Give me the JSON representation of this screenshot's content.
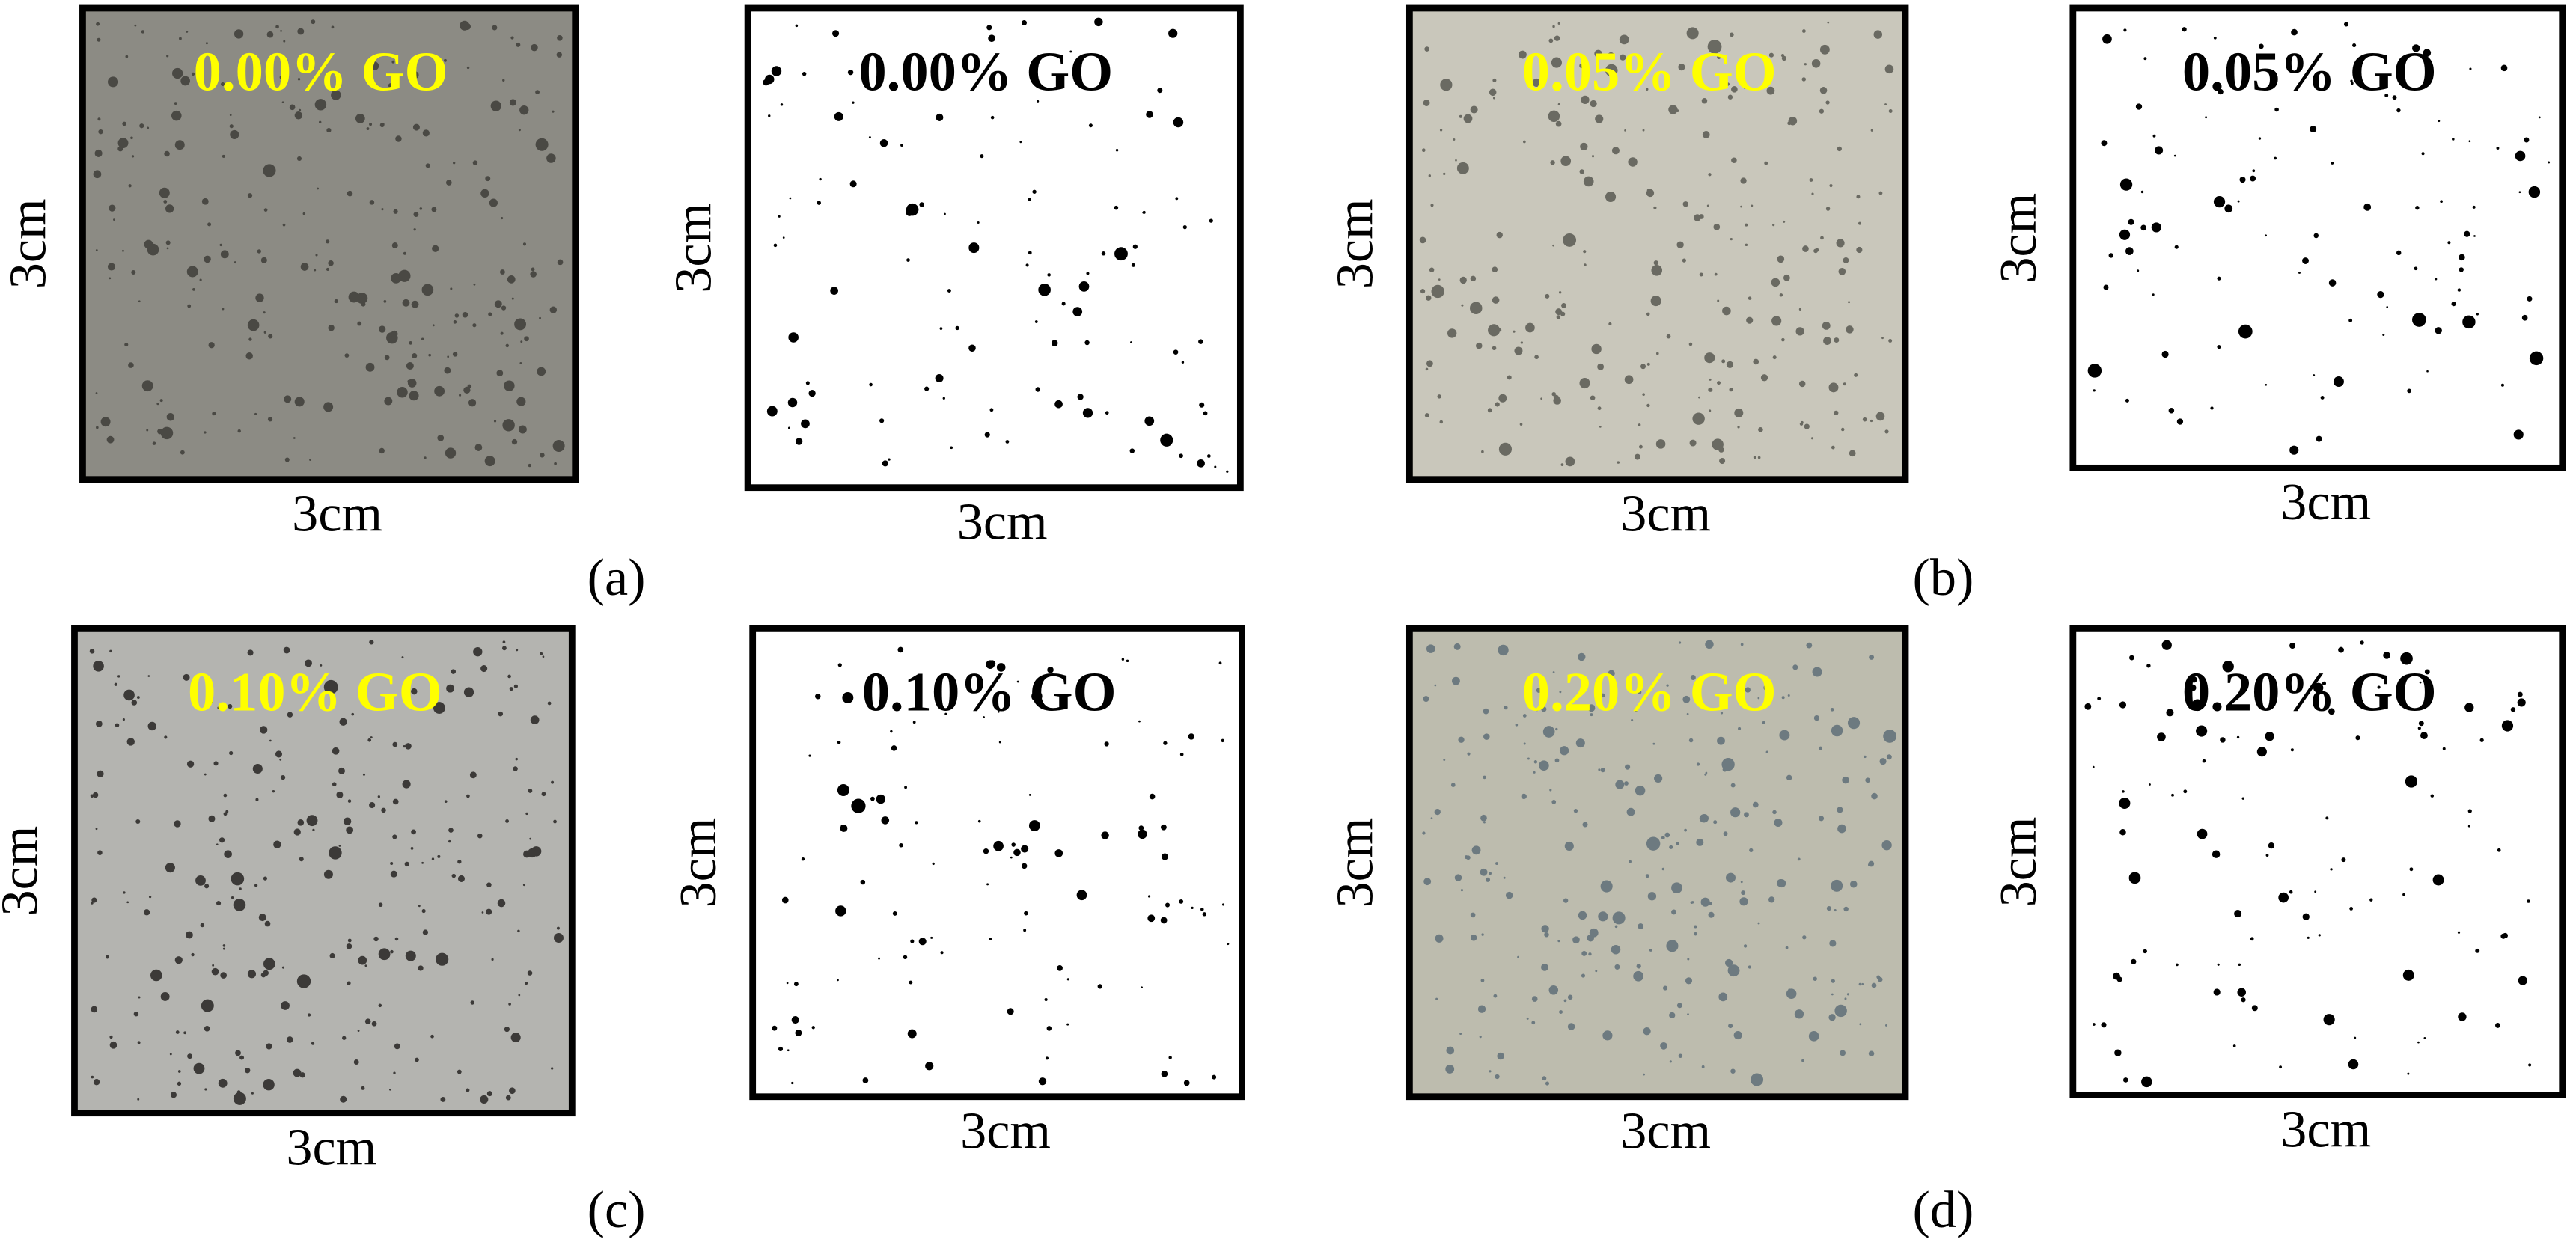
{
  "panels": [
    {
      "label": "(a)",
      "photo": {
        "caption": "0.00% GO",
        "height_label": "3cm",
        "width_label": "3cm"
      },
      "binary": {
        "caption": "0.00% GO",
        "height_label": "3cm",
        "width_label": "3cm"
      }
    },
    {
      "label": "(b)",
      "photo": {
        "caption": "0.05% GO",
        "height_label": "3cm",
        "width_label": "3cm"
      },
      "binary": {
        "caption": "0.05% GO",
        "height_label": "3cm",
        "width_label": "3cm"
      }
    },
    {
      "label": "(c)",
      "photo": {
        "caption": "0.10% GO",
        "height_label": "3cm",
        "width_label": "3cm"
      },
      "binary": {
        "caption": "0.10% GO",
        "height_label": "3cm",
        "width_label": "3cm"
      }
    },
    {
      "label": "(d)",
      "photo": {
        "caption": "0.20% GO",
        "height_label": "3cm",
        "width_label": "3cm"
      },
      "binary": {
        "caption": "0.20% GO",
        "height_label": "3cm",
        "width_label": "3cm"
      }
    }
  ]
}
